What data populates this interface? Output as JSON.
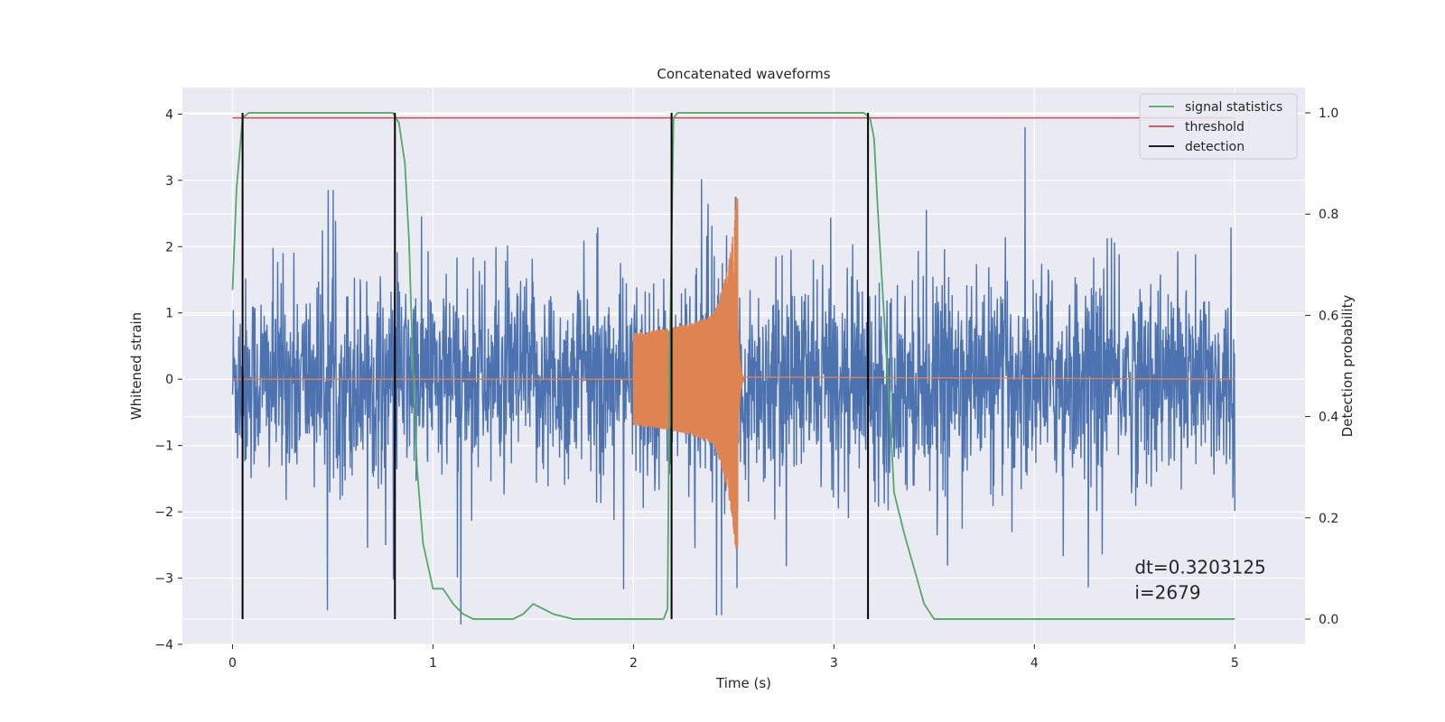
{
  "chart_data": {
    "type": "line",
    "title": "Concatenated waveforms",
    "xlabel": "Time (s)",
    "ylabel": "Whitened strain",
    "ylabel_right": "Detection probability",
    "xlim": [
      -0.25,
      5.35
    ],
    "ylim": [
      -4.0,
      4.4
    ],
    "ylim_right": [
      -0.05,
      1.05
    ],
    "x_ticks": [
      0,
      1,
      2,
      3,
      4,
      5
    ],
    "y_ticks": [
      -4,
      -3,
      -2,
      -1,
      0,
      1,
      2,
      3,
      4
    ],
    "y_ticks_right": [
      0.0,
      0.2,
      0.4,
      0.6,
      0.8,
      1.0
    ],
    "x_tick_labels": [
      "0",
      "1",
      "2",
      "3",
      "4",
      "5"
    ],
    "y_tick_labels": [
      "−4",
      "−3",
      "−2",
      "−1",
      "0",
      "1",
      "2",
      "3",
      "4"
    ],
    "y_tick_labels_right": [
      "0.0",
      "0.2",
      "0.4",
      "0.6",
      "0.8",
      "1.0"
    ],
    "grid": true,
    "legend_position": "top-right",
    "colors": {
      "strain": "#4c72b0",
      "injection": "#dd8452",
      "signal_statistics": "#55a868",
      "threshold": "#c44e52",
      "detection": "#000000",
      "background": "#eaeaf2",
      "grid": "#ffffff"
    },
    "series": [
      {
        "name": "signal statistics",
        "axis": "right",
        "x": [
          0.0,
          0.02,
          0.05,
          0.08,
          0.12,
          0.2,
          0.4,
          0.6,
          0.8,
          0.83,
          0.86,
          0.88,
          0.9,
          0.92,
          0.95,
          1.0,
          1.05,
          1.1,
          1.15,
          1.2,
          1.3,
          1.4,
          1.45,
          1.5,
          1.55,
          1.6,
          1.7,
          1.8,
          2.0,
          2.15,
          2.17,
          2.18,
          2.2,
          2.22,
          2.4,
          2.6,
          2.8,
          3.0,
          3.15,
          3.18,
          3.2,
          3.22,
          3.25,
          3.28,
          3.3,
          3.35,
          3.4,
          3.45,
          3.5,
          3.6,
          4.0,
          4.5,
          5.0
        ],
        "values": [
          0.65,
          0.85,
          0.99,
          1.0,
          1.0,
          1.0,
          1.0,
          1.0,
          1.0,
          0.98,
          0.9,
          0.75,
          0.5,
          0.3,
          0.15,
          0.06,
          0.06,
          0.03,
          0.01,
          0.0,
          0.0,
          0.0,
          0.01,
          0.03,
          0.02,
          0.01,
          0.0,
          0.0,
          0.0,
          0.0,
          0.02,
          0.5,
          0.99,
          1.0,
          1.0,
          1.0,
          1.0,
          1.0,
          1.0,
          0.99,
          0.95,
          0.8,
          0.6,
          0.4,
          0.25,
          0.17,
          0.1,
          0.03,
          0.0,
          0.0,
          0.0,
          0.0,
          0.0
        ]
      },
      {
        "name": "threshold",
        "axis": "right",
        "x": [
          0.0,
          5.0
        ],
        "values": [
          0.99,
          0.99
        ]
      },
      {
        "name": "detection",
        "axis": "right",
        "x": [
          0.05,
          0.81,
          2.19,
          3.17
        ],
        "ymin": 0.0,
        "ymax": 1.0
      }
    ],
    "strain_noise": {
      "x_start": 0.0,
      "x_end": 5.0,
      "amplitude_typical": 1.3,
      "amplitude_max": 4.1
    },
    "injection": {
      "x_start": 2.0,
      "x_merge": 2.52,
      "x_ringdown_end": 2.55,
      "amplitude_start": 0.7,
      "amplitude_peak": 2.75
    },
    "annotation": {
      "dt_text": "dt=0.3203125",
      "i_text": " i=2679",
      "x": 4.5,
      "y": -3.0
    }
  }
}
